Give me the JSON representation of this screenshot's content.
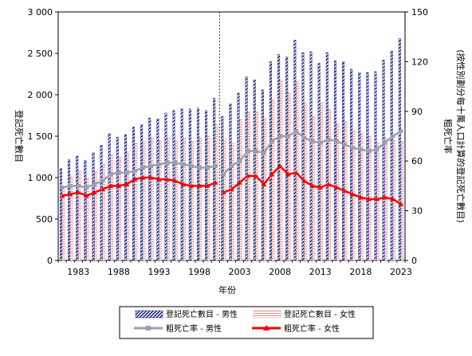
{
  "chart_data": {
    "type": "bar",
    "title": "",
    "xlabel": "年份",
    "ylabel": "登記死亡數目",
    "y2label_line1": "粗死亡率",
    "y2label_line2": "(按性別劃分每十萬人口計算的登記死亡數目)",
    "ylim": [
      0,
      3000
    ],
    "y2lim": [
      0,
      150
    ],
    "y_ticks": [
      "0",
      "500",
      "1 000",
      "1 500",
      "2 000",
      "2 500",
      "3 000"
    ],
    "y2_ticks": [
      "0",
      "30",
      "60",
      "90",
      "120",
      "150"
    ],
    "x_tick_labels": [
      "1983",
      "1988",
      "1993",
      "1998",
      "2003",
      "2008",
      "2013",
      "2018",
      "2023"
    ],
    "years": [
      1981,
      1982,
      1983,
      1984,
      1985,
      1986,
      1987,
      1988,
      1989,
      1990,
      1991,
      1992,
      1993,
      1994,
      1995,
      1996,
      1997,
      1998,
      1999,
      2000,
      2001,
      2002,
      2003,
      2004,
      2005,
      2006,
      2007,
      2008,
      2009,
      2010,
      2011,
      2012,
      2013,
      2014,
      2015,
      2016,
      2017,
      2018,
      2019,
      2020,
      2021,
      2022,
      2023
    ],
    "series": [
      {
        "name": "登記死亡數目 - 男性",
        "kind": "bar",
        "axis": "left",
        "values": [
          1110,
          1220,
          1260,
          1210,
          1300,
          1390,
          1530,
          1490,
          1520,
          1610,
          1640,
          1720,
          1710,
          1780,
          1810,
          1830,
          1830,
          1840,
          1810,
          1960,
          1740,
          1890,
          2020,
          2220,
          2180,
          2060,
          2400,
          2490,
          2460,
          2660,
          2510,
          2520,
          2380,
          2510,
          2410,
          2400,
          2310,
          2270,
          2270,
          2280,
          2420,
          2530,
          2680
        ]
      },
      {
        "name": "登記死亡數目 - 女性",
        "kind": "bar",
        "axis": "left",
        "values": [
          860,
          1020,
          1090,
          1000,
          1080,
          1160,
          1270,
          1250,
          1310,
          1420,
          1440,
          1480,
          1450,
          1490,
          1440,
          1480,
          1440,
          1480,
          1500,
          1640,
          1460,
          1410,
          1700,
          1800,
          1800,
          1720,
          1940,
          2180,
          2020,
          2160,
          1900,
          1740,
          1900,
          1830,
          1660,
          1680,
          1580,
          1530,
          1500,
          1430,
          1480,
          1450,
          1440
        ]
      },
      {
        "name": "粗死亡率 - 男性",
        "kind": "line",
        "axis": "right",
        "values": [
          44,
          45,
          45,
          44,
          46,
          48,
          52,
          53,
          53,
          54,
          56,
          57,
          58,
          59,
          59,
          58,
          57,
          56,
          56,
          57,
          52,
          57,
          60,
          66,
          66,
          65,
          72,
          75,
          75,
          78,
          74,
          72,
          71,
          73,
          72,
          70,
          68,
          67,
          66,
          67,
          71,
          75,
          78
        ]
      },
      {
        "name": "粗死亡率 - 女性",
        "kind": "line",
        "axis": "right",
        "values": [
          39,
          40,
          41,
          39,
          41,
          43,
          45,
          45,
          46,
          49,
          50,
          50,
          49,
          49,
          48,
          46,
          45,
          45,
          45,
          47,
          41,
          43,
          47,
          51,
          51,
          46,
          52,
          57,
          52,
          53,
          48,
          45,
          44,
          46,
          44,
          42,
          40,
          38,
          37,
          37,
          38,
          37,
          34
        ]
      }
    ],
    "colors": {
      "male_bar": "#1f2a80",
      "female_bar": "#ef8d8d",
      "male_line": "#9aa0ae",
      "female_line": "#ff0000",
      "divider": "#c00000"
    },
    "divider_between": [
      2000,
      2001
    ],
    "grid": false,
    "legend_position": "bottom"
  }
}
